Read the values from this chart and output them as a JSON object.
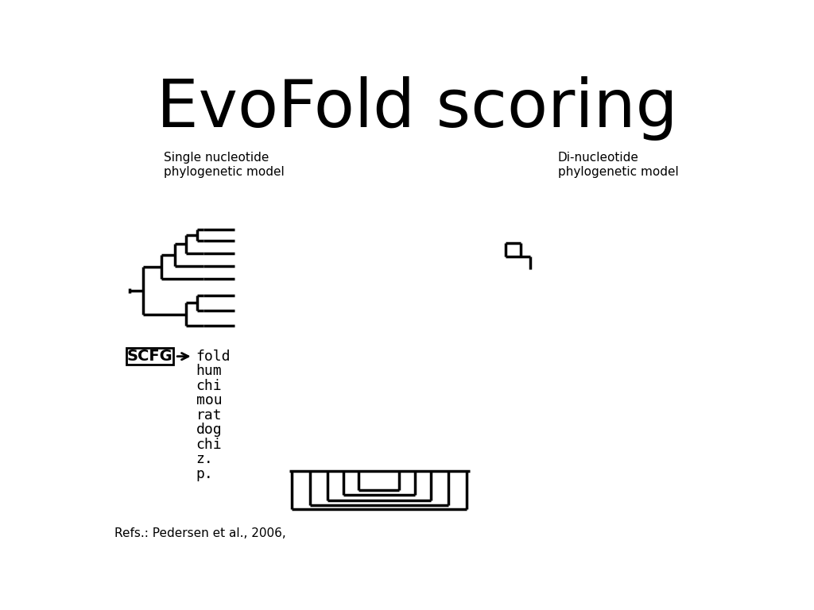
{
  "title": "EvoFold scoring",
  "title_fontsize": 60,
  "bg_color": "#ffffff",
  "label_single": "Single nucleotide\nphylogenetic model",
  "label_di": "Di-nucleotide\nphylogenetic model",
  "label_fontsize": 11,
  "scfg_text": "SCFG",
  "species_list": [
    "fold",
    "hum",
    "chi",
    "mou",
    "rat",
    "dog",
    "chi",
    "z.",
    "p."
  ],
  "refs_text": "Refs.: Pedersen et al., 2006,",
  "refs_fontsize": 11,
  "lw": 2.5
}
